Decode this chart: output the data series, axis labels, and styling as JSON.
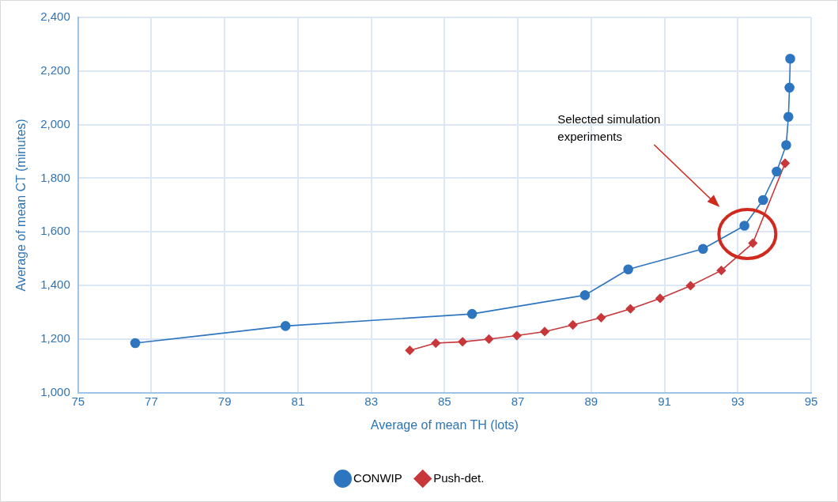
{
  "chart_data": {
    "type": "line",
    "xlabel": "Average of mean TH (lots)",
    "ylabel": "Average of mean CT (minutes)",
    "xlim": [
      75,
      95
    ],
    "xticks": [
      75,
      77,
      79,
      81,
      83,
      85,
      87,
      89,
      91,
      93,
      95
    ],
    "ylim": [
      1000,
      2400
    ],
    "yticks": [
      {
        "value": 1000,
        "label": "1,000"
      },
      {
        "value": 1200,
        "label": "1,200"
      },
      {
        "value": 1400,
        "label": "1,400"
      },
      {
        "value": 1600,
        "label": "1,600"
      },
      {
        "value": 1800,
        "label": "1,800"
      },
      {
        "value": 2000,
        "label": "2,000"
      },
      {
        "value": 2200,
        "label": "2,200"
      },
      {
        "value": 2400,
        "label": "2,400"
      }
    ],
    "grid": true,
    "legend": "bottom",
    "series": [
      {
        "name": "CONWIP",
        "color": "#2e75c0",
        "marker": "circle",
        "x": [
          76.56,
          80.66,
          85.75,
          88.83,
          90.01,
          92.05,
          93.18,
          93.69,
          94.06,
          94.32,
          94.38,
          94.41,
          94.43
        ],
        "values": [
          1185,
          1249,
          1294,
          1364,
          1460,
          1537,
          1623,
          1719,
          1825,
          1924,
          2029,
          2138,
          2246
        ]
      },
      {
        "name": "Push-det.",
        "color": "#c8373a",
        "marker": "diamond",
        "x": [
          84.05,
          84.76,
          85.49,
          86.21,
          86.97,
          87.73,
          88.5,
          89.27,
          90.07,
          90.88,
          91.71,
          92.55,
          93.41,
          94.29
        ],
        "values": [
          1158,
          1185,
          1190,
          1200,
          1213,
          1228,
          1253,
          1280,
          1313,
          1352,
          1399,
          1456,
          1558,
          1856
        ]
      }
    ],
    "annotations": [
      "Selected simulation experiments"
    ]
  }
}
